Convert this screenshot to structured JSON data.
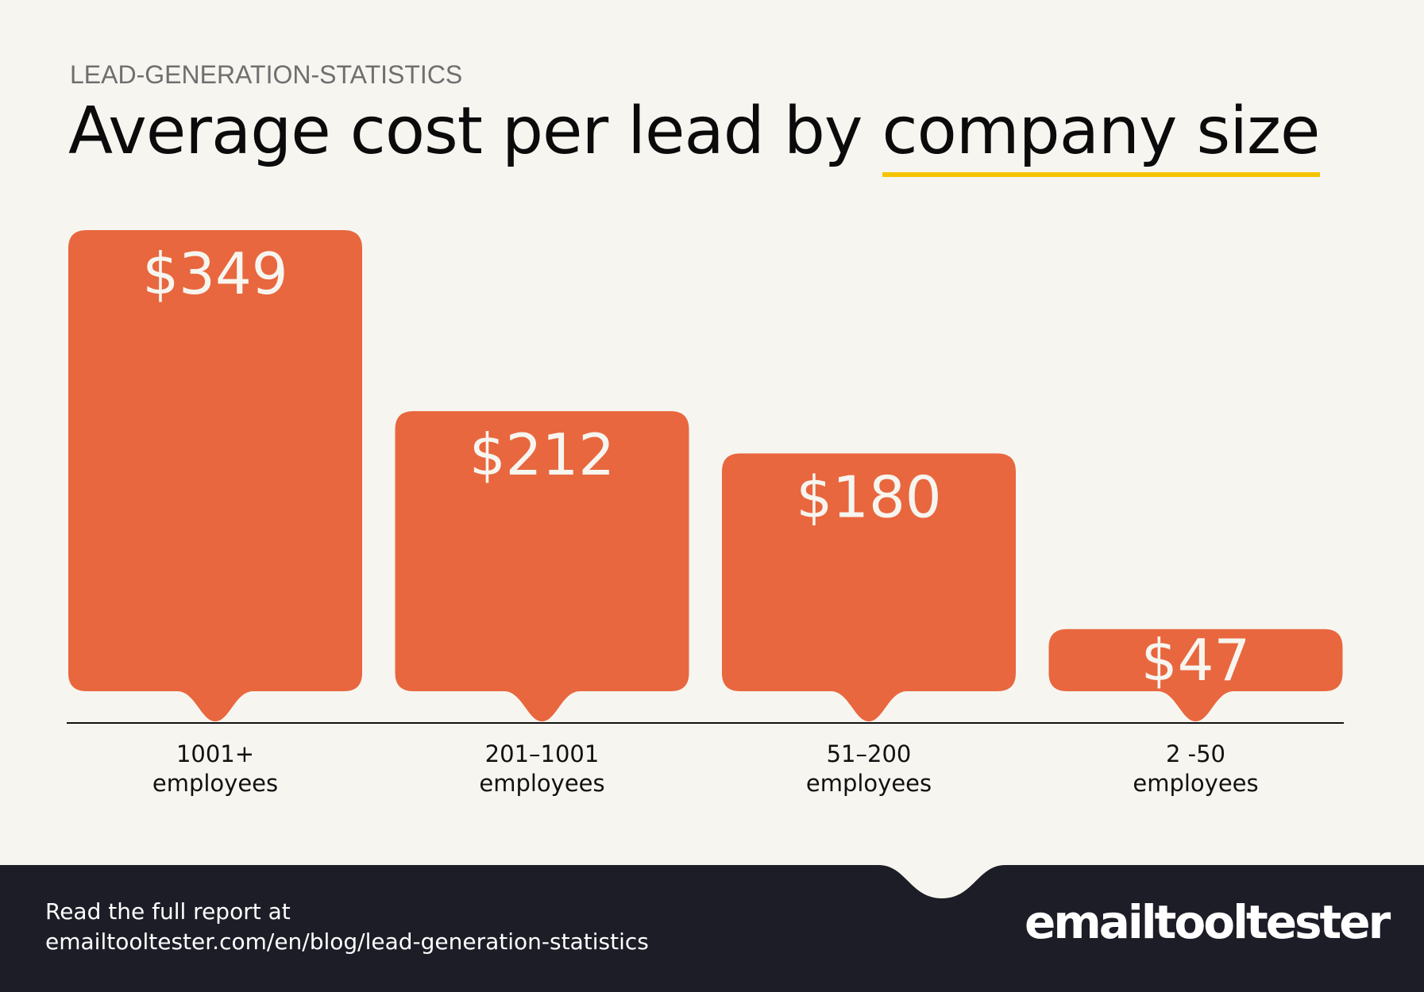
{
  "header": {
    "eyebrow": "LEAD-GENERATION-STATISTICS",
    "title_main": "Average cost per lead by ",
    "title_highlight": "company size"
  },
  "chart_data": {
    "type": "bar",
    "title": "Average cost per lead by company size",
    "categories": [
      "1001+ employees",
      "201–1001 employees",
      "51–200 employees",
      "2 -50 employees"
    ],
    "category_lines": [
      [
        "1001+",
        "employees"
      ],
      [
        "201–1001",
        "employees"
      ],
      [
        "51–200",
        "employees"
      ],
      [
        "2 -50",
        "employees"
      ]
    ],
    "values": [
      349,
      212,
      180,
      47
    ],
    "value_labels": [
      "$349",
      "$212",
      "$180",
      "$47"
    ],
    "unit": "USD",
    "ylim": [
      0,
      349
    ],
    "grid": false,
    "colors": {
      "bar": "#e8673e",
      "label": "#f7f5f0",
      "highlight": "#f5c400"
    }
  },
  "footer": {
    "line1": "Read the full report at",
    "line2": "emailtooltester.com/en/blog/lead-generation-statistics",
    "logo": "emailtooltester",
    "background": "#1c1d26"
  }
}
